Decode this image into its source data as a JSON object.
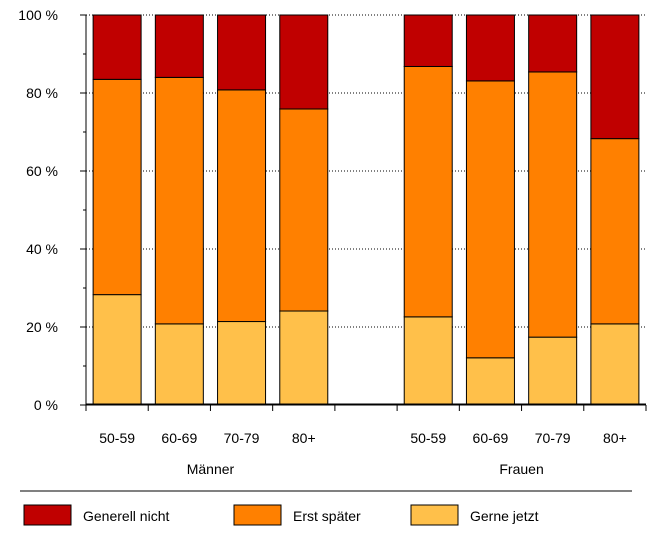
{
  "chart_data": {
    "type": "bar",
    "stacked": true,
    "percent": true,
    "ylim": [
      0,
      100
    ],
    "yticks": [
      "0 %",
      "20 %",
      "40 %",
      "60 %",
      "80 %",
      "100 %"
    ],
    "grid": "horizontal-dotted",
    "legend_position": "bottom",
    "colors": {
      "generell_nicht": "#C00000",
      "erst_spaeter": "#FF8000",
      "gerne_jetzt": "#FFC04A"
    },
    "groups": [
      {
        "label": "Männer",
        "categories": [
          "50-59",
          "60-69",
          "70-79",
          "80+"
        ]
      },
      {
        "label": "Frauen",
        "categories": [
          "50-59",
          "60-69",
          "70-79",
          "80+"
        ]
      }
    ],
    "series": [
      {
        "name": "Gerne jetzt",
        "key": "gerne_jetzt",
        "values": [
          28.3,
          20.8,
          21.4,
          24.1,
          22.6,
          12.1,
          17.4,
          20.8
        ]
      },
      {
        "name": "Erst später",
        "key": "erst_spaeter",
        "values": [
          55.2,
          63.2,
          59.4,
          51.8,
          64.2,
          71.0,
          68.0,
          47.5
        ]
      },
      {
        "name": "Generell nicht",
        "key": "generell_nicht",
        "values": [
          16.5,
          16.0,
          19.2,
          24.1,
          13.2,
          16.9,
          14.6,
          31.7
        ]
      }
    ],
    "legend_order": [
      "generell_nicht",
      "erst_spaeter",
      "gerne_jetzt"
    ]
  }
}
